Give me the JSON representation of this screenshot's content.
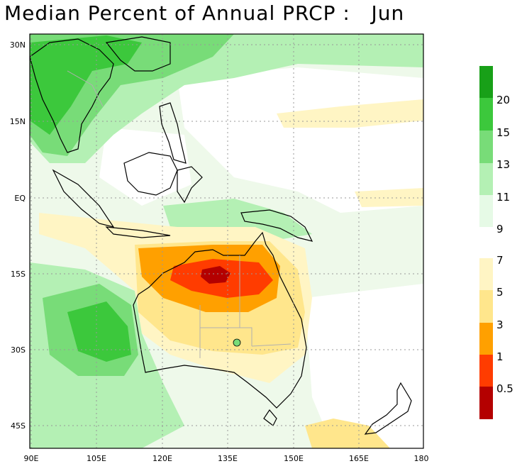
{
  "title": "Median Percent of Annual PRCP :   Jun",
  "axes": {
    "lat_labels": [
      "30N",
      "15N",
      "EQ",
      "15S",
      "30S",
      "45S"
    ],
    "lon_labels": [
      "90E",
      "105E",
      "120E",
      "135E",
      "150E",
      "165E",
      "180"
    ],
    "lat_range": [
      -50,
      32
    ],
    "lon_range": [
      90,
      180
    ],
    "grid": "dotted"
  },
  "colorbar": {
    "upper": {
      "labels": [
        "20",
        "15",
        "13",
        "11",
        "9"
      ],
      "colors": [
        "#18a018",
        "#3cc83c",
        "#78dc78",
        "#b4f0b4",
        "#e6fae6"
      ]
    },
    "lower": {
      "labels": [
        "7",
        "5",
        "3",
        "1",
        "0.5"
      ],
      "colors": [
        "#fff5c4",
        "#ffe68c",
        "#ffa000",
        "#ff3c00",
        "#b40000"
      ]
    }
  },
  "palette": {
    "background": "#ffffff",
    "ocean_base": "#eef9ea",
    "coast": "#000000",
    "borders": "#b0b0b0"
  }
}
